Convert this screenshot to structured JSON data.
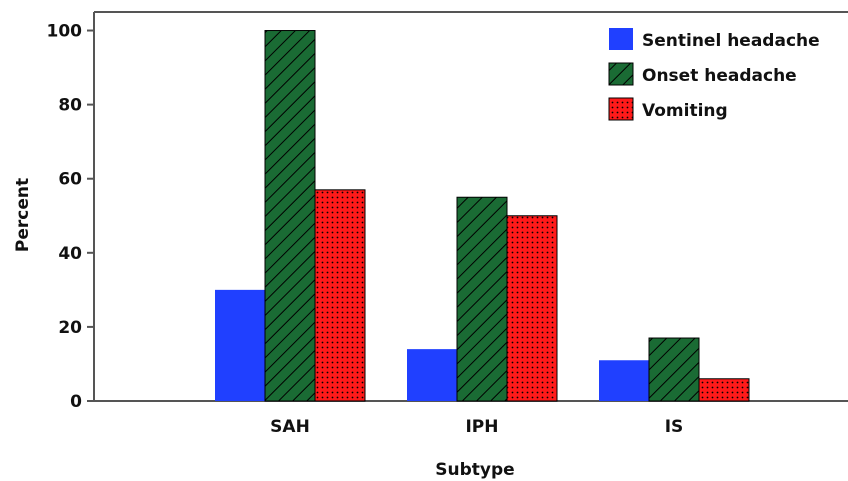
{
  "chart_data": {
    "type": "bar",
    "title": "",
    "xlabel": "Subtype",
    "ylabel": "Percent",
    "categories": [
      "SAH",
      "IPH",
      "IS"
    ],
    "ylim": [
      0,
      105
    ],
    "yticks": [
      0,
      20,
      40,
      60,
      80,
      100
    ],
    "grid": false,
    "legend_position": "top-right",
    "series": [
      {
        "name": "Sentinel headache",
        "values": [
          30,
          14,
          11
        ],
        "color": "#2040ff",
        "pattern": "solid"
      },
      {
        "name": "Onset headache",
        "values": [
          100,
          55,
          17
        ],
        "color": "#1a6b34",
        "pattern": "diagonal-hatch"
      },
      {
        "name": "Vomiting",
        "values": [
          57,
          50,
          6
        ],
        "color": "#ff1a1a",
        "pattern": "dots"
      }
    ]
  }
}
